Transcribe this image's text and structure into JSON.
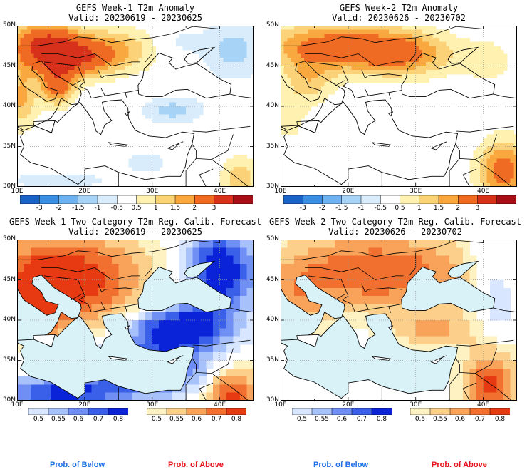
{
  "panels": [
    {
      "title": "GEFS Week-1 T2m Anomaly",
      "valid": "Valid: 20230619 - 20230625",
      "kind": "anomaly",
      "week": 1
    },
    {
      "title": "GEFS Week-2 T2m Anomaly",
      "valid": "Valid: 20230626 - 20230702",
      "kind": "anomaly",
      "week": 2
    },
    {
      "title": "GEFS Week-1 Two-Category T2m Reg. Calib. Forecast",
      "valid": "Valid: 20230619 - 20230625",
      "kind": "prob",
      "week": 1
    },
    {
      "title": "GEFS Week-2 Two-Category T2m Reg. Calib. Forecast",
      "valid": "Valid: 20230626 - 20230702",
      "kind": "prob",
      "week": 2
    }
  ],
  "axes": {
    "lat_labels": [
      "50N",
      "45N",
      "40N",
      "35N",
      "30N"
    ],
    "lon_labels": [
      "10E",
      "20E",
      "30E",
      "40E"
    ]
  },
  "anomaly_colorbar": {
    "labels": [
      "-3",
      "-2",
      "-1.5",
      "-1",
      "-0.5",
      "0.5",
      "1",
      "1.5",
      "2",
      "3"
    ],
    "colors": [
      "#1c62c4",
      "#3c8ee0",
      "#6fb2ee",
      "#a6d3f6",
      "#d8ecfb",
      "#ffffff",
      "#fff2b0",
      "#fcd278",
      "#f9a73f",
      "#ef6b23",
      "#d7301b",
      "#a50f15"
    ]
  },
  "below_colorbar": {
    "labels": [
      "0.5",
      "0.55",
      "0.6",
      "0.7",
      "0.8"
    ],
    "colors": [
      "#d9e6ff",
      "#a7c1fb",
      "#6f8ff5",
      "#3a5fe9",
      "#0a23d8"
    ]
  },
  "above_colorbar": {
    "labels": [
      "0.5",
      "0.55",
      "0.6",
      "0.7",
      "0.8"
    ],
    "colors": [
      "#fff2c2",
      "#fcd08a",
      "#f8a25a",
      "#f2702f",
      "#e83a12"
    ]
  },
  "prob_labels": {
    "below": "Prob. of Below",
    "above": "Prob. of Above",
    "below_color": "#1e6fe6",
    "above_color": "#e8101b"
  },
  "colors": {
    "sea_prob": "#d9f2f8",
    "coast": "#000000",
    "grid": "#9a9a9a"
  }
}
